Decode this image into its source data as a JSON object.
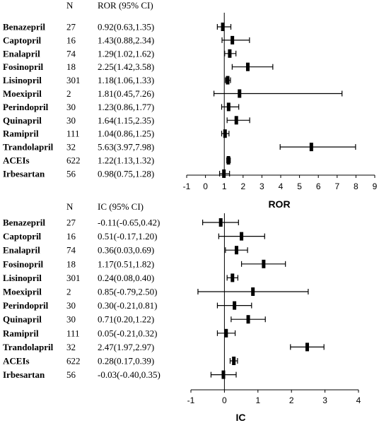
{
  "chart_data": [
    {
      "type": "forest",
      "headers": {
        "n": "N",
        "estimate": "ROR (95% CI)"
      },
      "xlabel": "ROR",
      "xlim": [
        -1,
        9
      ],
      "xticks": [
        "-1",
        "0",
        "1",
        "2",
        "3",
        "4",
        "5",
        "6",
        "7",
        "8",
        "9"
      ],
      "reference_line": 1,
      "rows": [
        {
          "drug": "Benazepril",
          "n": "27",
          "ci_text": "0.92(0.63,1.35)",
          "est": 0.92,
          "lo": 0.63,
          "hi": 1.35
        },
        {
          "drug": "Captopril",
          "n": "16",
          "ci_text": "1.43(0.88,2.34)",
          "est": 1.43,
          "lo": 0.88,
          "hi": 2.34
        },
        {
          "drug": "Enalapril",
          "n": "74",
          "ci_text": "1.29(1.02,1.62)",
          "est": 1.29,
          "lo": 1.02,
          "hi": 1.62
        },
        {
          "drug": "Fosinopril",
          "n": "18",
          "ci_text": "2.25(1.42,3.58)",
          "est": 2.25,
          "lo": 1.42,
          "hi": 3.58
        },
        {
          "drug": "Lisinopril",
          "n": "301",
          "ci_text": "1.18(1.06,1.33)",
          "est": 1.18,
          "lo": 1.06,
          "hi": 1.33
        },
        {
          "drug": "Moexipril",
          "n": "2",
          "ci_text": "1.81(0.45,7.26)",
          "est": 1.81,
          "lo": 0.45,
          "hi": 7.26
        },
        {
          "drug": "Perindopril",
          "n": "30",
          "ci_text": "1.23(0.86,1.77)",
          "est": 1.23,
          "lo": 0.86,
          "hi": 1.77
        },
        {
          "drug": "Quinapril",
          "n": "30",
          "ci_text": "1.64(1.15,2.35)",
          "est": 1.64,
          "lo": 1.15,
          "hi": 2.35
        },
        {
          "drug": "Ramipril",
          "n": "111",
          "ci_text": "1.04(0.86,1.25)",
          "est": 1.04,
          "lo": 0.86,
          "hi": 1.25
        },
        {
          "drug": "Trandolapril",
          "n": "32",
          "ci_text": "5.63(3.97,7.98)",
          "est": 5.63,
          "lo": 3.97,
          "hi": 7.98
        },
        {
          "drug": "ACEIs",
          "n": "622",
          "ci_text": "1.22(1.13,1.32)",
          "est": 1.22,
          "lo": 1.13,
          "hi": 1.32
        },
        {
          "drug": "Irbesartan",
          "n": "56",
          "ci_text": "0.98(0.75,1.28)",
          "est": 0.98,
          "lo": 0.75,
          "hi": 1.28
        }
      ]
    },
    {
      "type": "forest",
      "headers": {
        "n": "N",
        "estimate": "IC (95% CI)"
      },
      "xlabel": "IC",
      "xlim": [
        -1,
        4
      ],
      "xticks": [
        "-1",
        "0",
        "1",
        "2",
        "3",
        "4"
      ],
      "reference_line": 0,
      "rows": [
        {
          "drug": "Benazepril",
          "n": "27",
          "ci_text": "-0.11(-0.65,0.42)",
          "est": -0.11,
          "lo": -0.65,
          "hi": 0.42
        },
        {
          "drug": "Captopril",
          "n": "16",
          "ci_text": "0.51(-0.17,1.20)",
          "est": 0.51,
          "lo": -0.17,
          "hi": 1.2
        },
        {
          "drug": "Enalapril",
          "n": "74",
          "ci_text": "0.36(0.03,0.69)",
          "est": 0.36,
          "lo": 0.03,
          "hi": 0.69
        },
        {
          "drug": "Fosinopril",
          "n": "18",
          "ci_text": "1.17(0.51,1.82)",
          "est": 1.17,
          "lo": 0.51,
          "hi": 1.82
        },
        {
          "drug": "Lisinopril",
          "n": "301",
          "ci_text": "0.24(0.08,0.40)",
          "est": 0.24,
          "lo": 0.08,
          "hi": 0.4
        },
        {
          "drug": "Moexipril",
          "n": "2",
          "ci_text": "0.85(-0.79,2.50)",
          "est": 0.85,
          "lo": -0.79,
          "hi": 2.5
        },
        {
          "drug": "Perindopril",
          "n": "30",
          "ci_text": "0.30(-0.21,0.81)",
          "est": 0.3,
          "lo": -0.21,
          "hi": 0.81
        },
        {
          "drug": "Quinapril",
          "n": "30",
          "ci_text": "0.71(0.20,1.22)",
          "est": 0.71,
          "lo": 0.2,
          "hi": 1.22
        },
        {
          "drug": "Ramipril",
          "n": "111",
          "ci_text": "0.05(-0.21,0.32)",
          "est": 0.05,
          "lo": -0.21,
          "hi": 0.32
        },
        {
          "drug": "Trandolapril",
          "n": "32",
          "ci_text": "2.47(1.97,2.97)",
          "est": 2.47,
          "lo": 1.97,
          "hi": 2.97
        },
        {
          "drug": "ACEIs",
          "n": "622",
          "ci_text": "0.28(0.17,0.39)",
          "est": 0.28,
          "lo": 0.17,
          "hi": 0.39
        },
        {
          "drug": "Irbesartan",
          "n": "56",
          "ci_text": "-0.03(-0.40,0.35)",
          "est": -0.03,
          "lo": -0.4,
          "hi": 0.35
        }
      ]
    }
  ]
}
